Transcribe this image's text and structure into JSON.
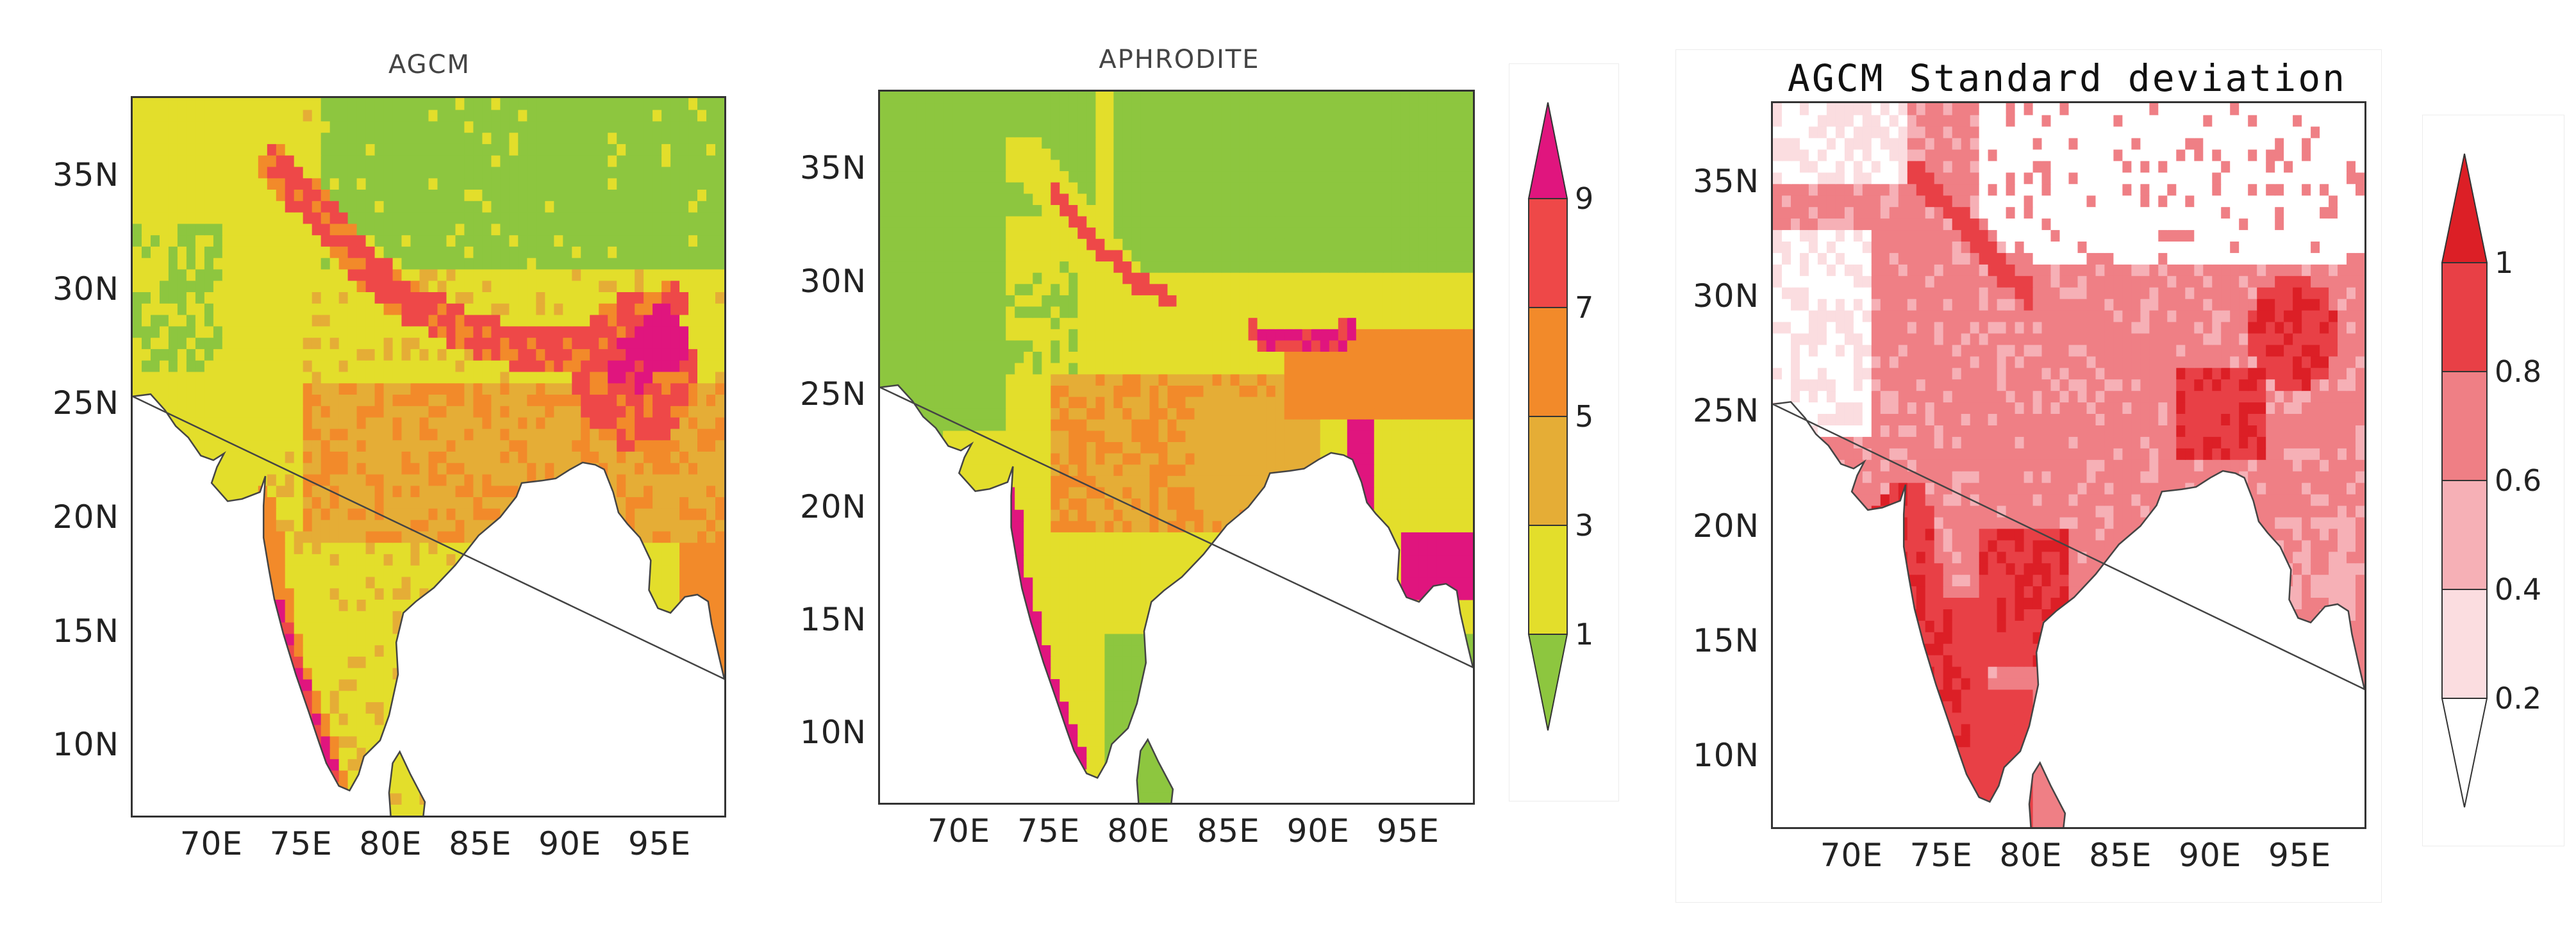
{
  "panels": [
    {
      "id": "agcm",
      "title": "AGCM",
      "palette": "precip",
      "variant": 0
    },
    {
      "id": "aphrodite",
      "title": "APHRODITE",
      "palette": "precip",
      "variant": 1
    },
    {
      "id": "agcm_sd",
      "title": "AGCM Standard deviation",
      "palette": "sd",
      "variant": 2
    }
  ],
  "axes": {
    "y_ticks": [
      "35N",
      "30N",
      "25N",
      "20N",
      "15N",
      "10N"
    ],
    "x_ticks": [
      "70E",
      "75E",
      "80E",
      "85E",
      "90E",
      "95E"
    ]
  },
  "colorbars": {
    "precip": {
      "labels": [
        "9",
        "7",
        "5",
        "3",
        "1"
      ],
      "colors": [
        "#e0157e",
        "#ee4848",
        "#f28a2a",
        "#e5ad36",
        "#e3de2b",
        "#8dc63f"
      ]
    },
    "sd": {
      "labels": [
        "1",
        "0.8",
        "0.6",
        "0.4",
        "0.2"
      ],
      "colors": [
        "#dc1f26",
        "#e84046",
        "#ef7f85",
        "#f6b0b6",
        "#fbdde0",
        "#ffffff"
      ]
    }
  },
  "colors": {
    "ocean": "#ffffff",
    "frame": "#333333",
    "coast": "#444444"
  }
}
